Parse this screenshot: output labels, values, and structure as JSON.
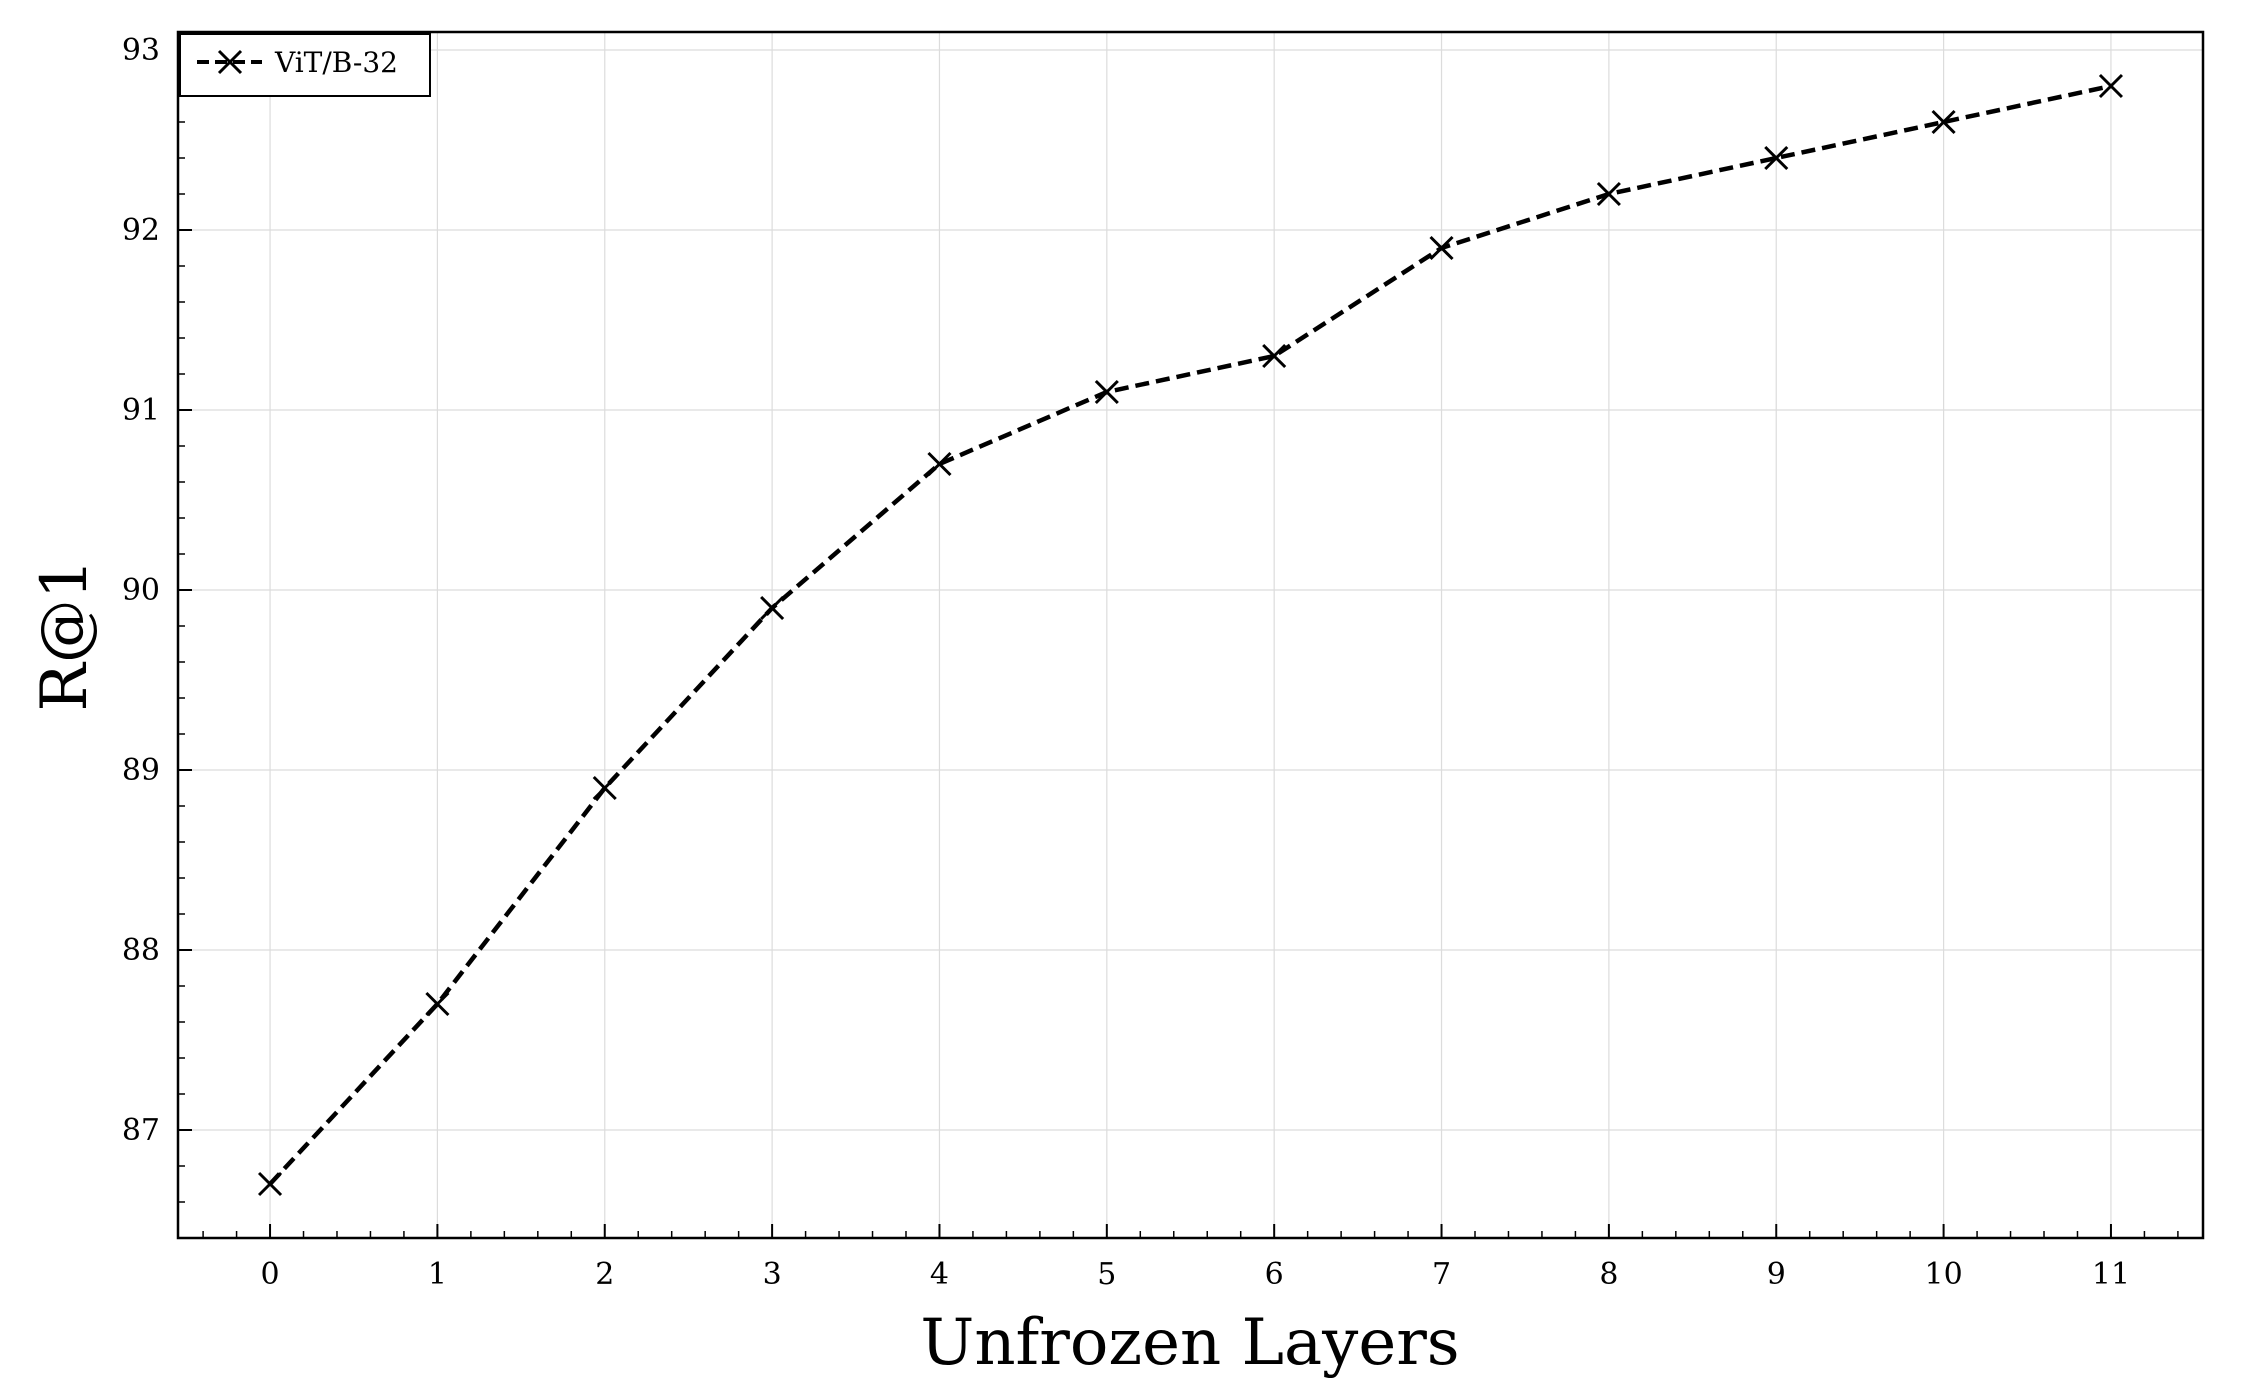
{
  "chart_data": {
    "type": "line",
    "title": "",
    "xlabel": "Unfrozen Layers",
    "ylabel": "R@1",
    "x": [
      0,
      1,
      2,
      3,
      4,
      5,
      6,
      7,
      8,
      9,
      10,
      11
    ],
    "series": [
      {
        "name": "ViT/B-32",
        "values": [
          86.7,
          87.7,
          88.9,
          89.9,
          90.7,
          91.1,
          91.3,
          91.9,
          92.2,
          92.4,
          92.6,
          92.8
        ],
        "color": "#000000",
        "line_style": "dashed",
        "marker": "x"
      }
    ],
    "xlim": [
      -0.55,
      11.55
    ],
    "ylim": [
      86.4,
      93.1
    ],
    "xticks": [
      0,
      1,
      2,
      3,
      4,
      5,
      6,
      7,
      8,
      9,
      10,
      11
    ],
    "xtick_labels": [
      "0",
      "1",
      "2",
      "3",
      "4",
      "5",
      "6",
      "7",
      "8",
      "9",
      "10",
      "11"
    ],
    "yticks": [
      87,
      88,
      89,
      90,
      91,
      92,
      93
    ],
    "ytick_labels": [
      "87",
      "88",
      "89",
      "90",
      "91",
      "92",
      "93"
    ],
    "grid": true,
    "grid_color": "#dcdcdc",
    "legend_position": "top-left"
  }
}
